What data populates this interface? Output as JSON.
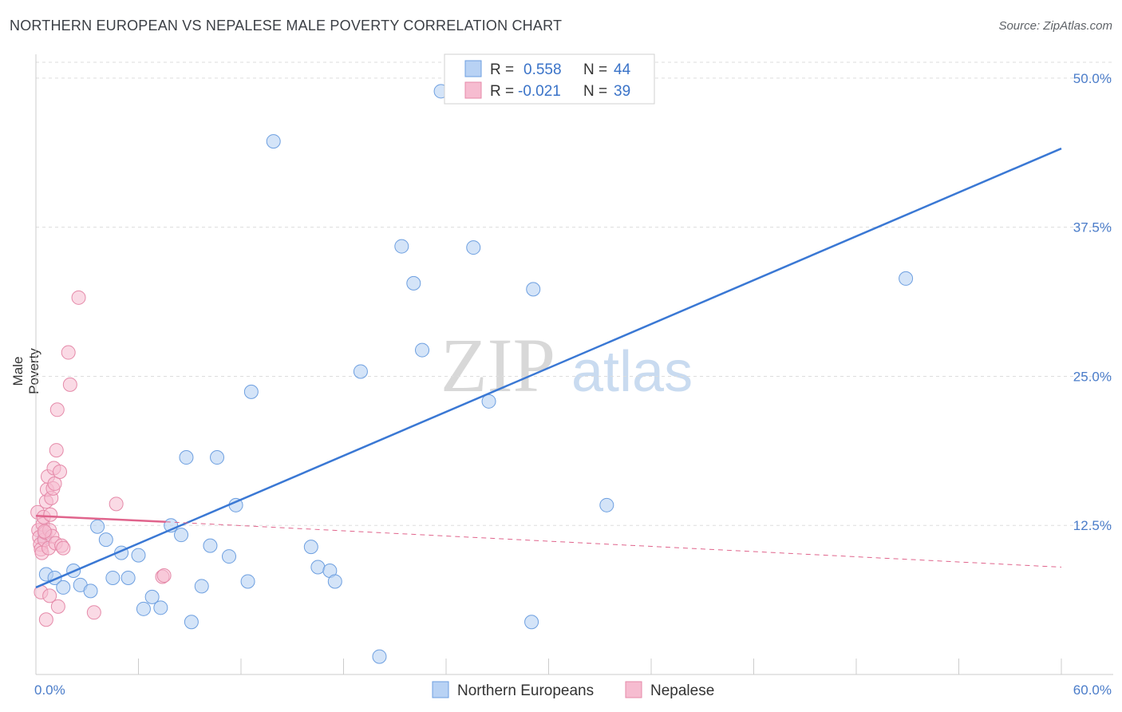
{
  "header": {
    "title": "NORTHERN EUROPEAN VS NEPALESE MALE POVERTY CORRELATION CHART",
    "source": "Source: ZipAtlas.com"
  },
  "watermark": {
    "zip": "ZIP",
    "atlas": "atlas"
  },
  "colors": {
    "blue": "#3a78d4",
    "blue_fill": "#b8d2f4",
    "pink": "#e0648c",
    "pink_fill": "#f6bcd0",
    "grid": "#dddddd"
  },
  "legend": {
    "r_label": "R =",
    "n_label": "N =",
    "items": [
      {
        "r": "0.558",
        "n": "44"
      },
      {
        "r": "-0.021",
        "n": "39"
      }
    ]
  },
  "chart_data": {
    "type": "scatter",
    "title": "NORTHERN EUROPEAN VS NEPALESE MALE POVERTY CORRELATION CHART",
    "xlabel": "",
    "ylabel": "Male Poverty",
    "xlim": [
      0,
      60
    ],
    "ylim": [
      0,
      52
    ],
    "x_tick_labels": [
      "0.0%",
      "60.0%"
    ],
    "y_ticks": [
      12.5,
      25.0,
      37.5,
      50.0
    ],
    "y_tick_labels": [
      "12.5%",
      "25.0%",
      "37.5%",
      "50.0%"
    ],
    "series": [
      {
        "name": "Northern Europeans",
        "r": 0.558,
        "n": 44,
        "trend": {
          "x": [
            0,
            60
          ],
          "y": [
            7.3,
            44.1
          ]
        },
        "points": [
          [
            0.5,
            11.5
          ],
          [
            0.6,
            8.4
          ],
          [
            1.1,
            8.1
          ],
          [
            1.6,
            7.3
          ],
          [
            2.2,
            8.7
          ],
          [
            2.6,
            7.5
          ],
          [
            3.2,
            7.0
          ],
          [
            3.6,
            12.4
          ],
          [
            4.1,
            11.3
          ],
          [
            4.5,
            8.1
          ],
          [
            5.0,
            10.2
          ],
          [
            5.4,
            8.1
          ],
          [
            6.0,
            10.0
          ],
          [
            6.3,
            5.5
          ],
          [
            6.8,
            6.5
          ],
          [
            7.3,
            5.6
          ],
          [
            7.9,
            12.5
          ],
          [
            8.5,
            11.7
          ],
          [
            8.8,
            18.2
          ],
          [
            9.1,
            4.4
          ],
          [
            9.7,
            7.4
          ],
          [
            10.2,
            10.8
          ],
          [
            10.6,
            18.2
          ],
          [
            11.3,
            9.9
          ],
          [
            11.7,
            14.2
          ],
          [
            12.4,
            7.8
          ],
          [
            12.6,
            23.7
          ],
          [
            13.9,
            44.7
          ],
          [
            16.1,
            10.7
          ],
          [
            16.5,
            9.0
          ],
          [
            17.2,
            8.7
          ],
          [
            17.5,
            7.8
          ],
          [
            19.0,
            25.4
          ],
          [
            20.1,
            1.5
          ],
          [
            21.4,
            35.9
          ],
          [
            22.1,
            32.8
          ],
          [
            22.6,
            27.2
          ],
          [
            23.7,
            48.9
          ],
          [
            25.6,
            35.8
          ],
          [
            26.5,
            22.9
          ],
          [
            29.1,
            32.3
          ],
          [
            29.0,
            4.4
          ],
          [
            33.4,
            14.2
          ],
          [
            50.9,
            33.2
          ]
        ]
      },
      {
        "name": "Nepalese",
        "r": -0.021,
        "n": 39,
        "trend_solid": {
          "x": [
            0,
            7.6
          ],
          "y": [
            13.3,
            12.8
          ]
        },
        "trend_dashed": {
          "x": [
            7.6,
            60
          ],
          "y": [
            12.8,
            9.0
          ]
        },
        "points": [
          [
            0.1,
            13.6
          ],
          [
            0.15,
            12.1
          ],
          [
            0.2,
            11.5
          ],
          [
            0.25,
            10.9
          ],
          [
            0.3,
            10.5
          ],
          [
            0.35,
            10.2
          ],
          [
            0.4,
            12.6
          ],
          [
            0.45,
            13.2
          ],
          [
            0.5,
            11.3
          ],
          [
            0.55,
            11.9
          ],
          [
            0.6,
            14.5
          ],
          [
            0.65,
            15.5
          ],
          [
            0.7,
            16.6
          ],
          [
            0.75,
            10.6
          ],
          [
            0.8,
            12.1
          ],
          [
            0.85,
            13.4
          ],
          [
            0.9,
            14.8
          ],
          [
            0.95,
            11.6
          ],
          [
            1.0,
            15.6
          ],
          [
            1.05,
            17.3
          ],
          [
            1.1,
            16.0
          ],
          [
            1.15,
            11.0
          ],
          [
            1.2,
            18.8
          ],
          [
            1.25,
            22.2
          ],
          [
            1.4,
            17.0
          ],
          [
            1.5,
            10.8
          ],
          [
            1.6,
            10.6
          ],
          [
            1.9,
            27.0
          ],
          [
            2.0,
            24.3
          ],
          [
            2.5,
            31.6
          ],
          [
            3.4,
            5.2
          ],
          [
            4.7,
            14.3
          ],
          [
            7.4,
            8.2
          ],
          [
            7.5,
            8.3
          ],
          [
            0.3,
            6.9
          ],
          [
            0.6,
            4.6
          ],
          [
            0.8,
            6.6
          ],
          [
            1.3,
            5.7
          ],
          [
            0.5,
            12.0
          ]
        ]
      }
    ]
  }
}
